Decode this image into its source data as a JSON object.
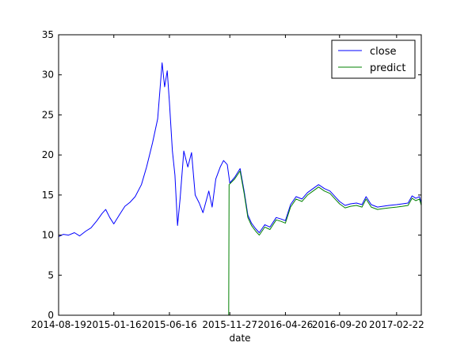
{
  "chart_data": {
    "type": "line",
    "xlabel": "date",
    "ylabel": "",
    "ylim": [
      0,
      35
    ],
    "yticks": [
      0,
      5,
      10,
      15,
      20,
      25,
      30,
      35
    ],
    "xlim": [
      "2014-08-19",
      "2017-04-30"
    ],
    "xticks": [
      "2014-08-19",
      "2015-01-16",
      "2015-06-16",
      "2015-11-27",
      "2016-04-26",
      "2016-09-20",
      "2017-02-22"
    ],
    "grid": false,
    "legend_position": "top-right",
    "series": [
      {
        "name": "close",
        "color": "#0000ff",
        "points": [
          [
            "2014-08-19",
            9.8
          ],
          [
            "2014-09-01",
            10.1
          ],
          [
            "2014-09-15",
            10.0
          ],
          [
            "2014-10-01",
            10.3
          ],
          [
            "2014-10-15",
            9.9
          ],
          [
            "2014-11-01",
            10.5
          ],
          [
            "2014-11-15",
            10.9
          ],
          [
            "2014-12-01",
            11.8
          ],
          [
            "2014-12-15",
            12.7
          ],
          [
            "2014-12-25",
            13.2
          ],
          [
            "2015-01-05",
            12.2
          ],
          [
            "2015-01-16",
            11.4
          ],
          [
            "2015-02-01",
            12.6
          ],
          [
            "2015-02-15",
            13.6
          ],
          [
            "2015-03-01",
            14.1
          ],
          [
            "2015-03-15",
            14.8
          ],
          [
            "2015-04-01",
            16.3
          ],
          [
            "2015-04-15",
            18.5
          ],
          [
            "2015-05-01",
            21.5
          ],
          [
            "2015-05-15",
            24.5
          ],
          [
            "2015-05-27",
            31.5
          ],
          [
            "2015-06-03",
            28.5
          ],
          [
            "2015-06-10",
            30.5
          ],
          [
            "2015-06-16",
            26.5
          ],
          [
            "2015-06-24",
            20.5
          ],
          [
            "2015-07-01",
            17.5
          ],
          [
            "2015-07-08",
            11.2
          ],
          [
            "2015-07-15",
            14.5
          ],
          [
            "2015-07-25",
            20.5
          ],
          [
            "2015-08-05",
            18.5
          ],
          [
            "2015-08-15",
            20.3
          ],
          [
            "2015-08-25",
            15.0
          ],
          [
            "2015-09-05",
            14.0
          ],
          [
            "2015-09-15",
            12.8
          ],
          [
            "2015-10-01",
            15.5
          ],
          [
            "2015-10-10",
            13.5
          ],
          [
            "2015-10-20",
            17.0
          ],
          [
            "2015-11-01",
            18.5
          ],
          [
            "2015-11-10",
            19.3
          ],
          [
            "2015-11-20",
            18.8
          ],
          [
            "2015-11-27",
            16.5
          ],
          [
            "2015-12-10",
            17.2
          ],
          [
            "2015-12-25",
            18.3
          ],
          [
            "2016-01-05",
            15.5
          ],
          [
            "2016-01-15",
            12.5
          ],
          [
            "2016-01-25",
            11.5
          ],
          [
            "2016-02-05",
            10.8
          ],
          [
            "2016-02-15",
            10.3
          ],
          [
            "2016-03-01",
            11.3
          ],
          [
            "2016-03-15",
            11.0
          ],
          [
            "2016-04-01",
            12.2
          ],
          [
            "2016-04-15",
            12.0
          ],
          [
            "2016-04-26",
            11.8
          ],
          [
            "2016-05-10",
            13.8
          ],
          [
            "2016-05-25",
            14.8
          ],
          [
            "2016-06-10",
            14.5
          ],
          [
            "2016-06-25",
            15.3
          ],
          [
            "2016-07-10",
            15.8
          ],
          [
            "2016-07-25",
            16.3
          ],
          [
            "2016-08-10",
            15.8
          ],
          [
            "2016-08-25",
            15.5
          ],
          [
            "2016-09-10",
            14.7
          ],
          [
            "2016-09-20",
            14.2
          ],
          [
            "2016-10-05",
            13.7
          ],
          [
            "2016-10-20",
            13.9
          ],
          [
            "2016-11-05",
            14.0
          ],
          [
            "2016-11-20",
            13.8
          ],
          [
            "2016-12-01",
            14.8
          ],
          [
            "2016-12-15",
            13.8
          ],
          [
            "2017-01-01",
            13.5
          ],
          [
            "2017-01-15",
            13.6
          ],
          [
            "2017-02-01",
            13.7
          ],
          [
            "2017-02-22",
            13.8
          ],
          [
            "2017-03-10",
            13.9
          ],
          [
            "2017-03-25",
            14.0
          ],
          [
            "2017-04-05",
            14.9
          ],
          [
            "2017-04-15",
            14.6
          ],
          [
            "2017-04-25",
            14.8
          ],
          [
            "2017-04-30",
            14.0
          ]
        ]
      },
      {
        "name": "predict",
        "color": "#008000",
        "points": [
          [
            "2014-08-19",
            0.0
          ],
          [
            "2015-11-24",
            0.0
          ],
          [
            "2015-11-25",
            16.3
          ],
          [
            "2015-12-10",
            17.0
          ],
          [
            "2015-12-25",
            18.0
          ],
          [
            "2016-01-05",
            15.2
          ],
          [
            "2016-01-15",
            12.2
          ],
          [
            "2016-01-25",
            11.2
          ],
          [
            "2016-02-05",
            10.5
          ],
          [
            "2016-02-15",
            10.0
          ],
          [
            "2016-03-01",
            11.0
          ],
          [
            "2016-03-15",
            10.7
          ],
          [
            "2016-04-01",
            11.9
          ],
          [
            "2016-04-15",
            11.7
          ],
          [
            "2016-04-26",
            11.5
          ],
          [
            "2016-05-10",
            13.5
          ],
          [
            "2016-05-25",
            14.5
          ],
          [
            "2016-06-10",
            14.2
          ],
          [
            "2016-06-25",
            15.0
          ],
          [
            "2016-07-10",
            15.5
          ],
          [
            "2016-07-25",
            16.0
          ],
          [
            "2016-08-10",
            15.5
          ],
          [
            "2016-08-25",
            15.2
          ],
          [
            "2016-09-10",
            14.4
          ],
          [
            "2016-09-20",
            13.9
          ],
          [
            "2016-10-05",
            13.4
          ],
          [
            "2016-10-20",
            13.6
          ],
          [
            "2016-11-05",
            13.7
          ],
          [
            "2016-11-20",
            13.5
          ],
          [
            "2016-12-01",
            14.5
          ],
          [
            "2016-12-15",
            13.5
          ],
          [
            "2017-01-01",
            13.2
          ],
          [
            "2017-01-15",
            13.3
          ],
          [
            "2017-02-01",
            13.4
          ],
          [
            "2017-02-22",
            13.5
          ],
          [
            "2017-03-10",
            13.6
          ],
          [
            "2017-03-25",
            13.7
          ],
          [
            "2017-04-05",
            14.6
          ],
          [
            "2017-04-15",
            14.3
          ],
          [
            "2017-04-25",
            14.5
          ],
          [
            "2017-04-30",
            13.7
          ]
        ]
      }
    ]
  }
}
